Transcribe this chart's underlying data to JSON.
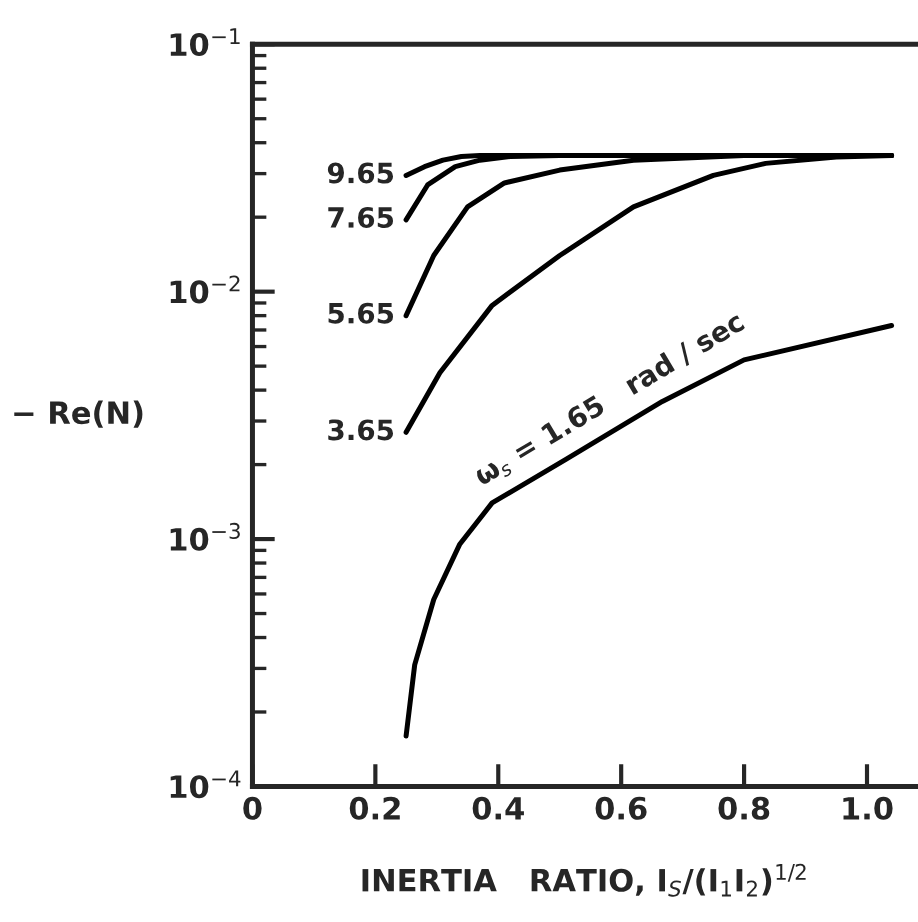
{
  "chart_data": {
    "type": "line",
    "xlabel": "INERTIA   RATIO, I$_{S}$/(I$_{1}$I$_{2}$)$^{1/2}$",
    "ylabel": "− Re(N)",
    "log": "y",
    "xlim": [
      0,
      1.08
    ],
    "ylim": [
      0.0001,
      0.1
    ],
    "xticks": [
      0,
      0.2,
      0.4,
      0.6,
      0.8,
      {
        "value": 1.0,
        "label": "1.0"
      }
    ],
    "yticks": [
      {
        "value": 0.0001,
        "label": "10$^{−4}$"
      },
      {
        "value": 0.001,
        "label": "10$^{−3}$"
      },
      {
        "value": 0.01,
        "label": "10$^{−2}$"
      },
      {
        "value": 0.1,
        "label": "10$^{−1}$"
      }
    ],
    "grid": false,
    "legend": false,
    "marker": "none",
    "line_style": "solid",
    "series": [
      {
        "name": "9.65",
        "color": "#000000",
        "x": [
          0.25,
          0.28,
          0.31,
          0.34,
          0.37,
          0.45,
          0.6,
          0.8,
          1.04
        ],
        "values": [
          0.0295,
          0.032,
          0.034,
          0.0352,
          0.0355,
          0.0355,
          0.0355,
          0.0355,
          0.0355
        ]
      },
      {
        "name": "7.65",
        "color": "#000000",
        "x": [
          0.25,
          0.285,
          0.33,
          0.37,
          0.42,
          0.5,
          0.7,
          1.04
        ],
        "values": [
          0.0195,
          0.027,
          0.032,
          0.034,
          0.0352,
          0.0355,
          0.0355,
          0.0355
        ]
      },
      {
        "name": "5.65",
        "color": "#000000",
        "x": [
          0.25,
          0.295,
          0.35,
          0.41,
          0.5,
          0.62,
          0.8,
          1.04
        ],
        "values": [
          0.008,
          0.014,
          0.022,
          0.0275,
          0.031,
          0.034,
          0.0355,
          0.0355
        ]
      },
      {
        "name": "3.65",
        "color": "#000000",
        "x": [
          0.25,
          0.305,
          0.39,
          0.5,
          0.62,
          0.75,
          0.835,
          0.95,
          1.04
        ],
        "values": [
          0.0027,
          0.0047,
          0.0088,
          0.014,
          0.022,
          0.0295,
          0.033,
          0.035,
          0.0355
        ]
      },
      {
        "color": "#000000",
        "x": [
          0.25,
          0.264,
          0.295,
          0.337,
          0.39,
          0.51,
          0.667,
          0.8,
          1.04
        ],
        "values": [
          0.00016,
          0.00031,
          0.00057,
          0.00095,
          0.0014,
          0.0021,
          0.0036,
          0.0053,
          0.0073
        ]
      }
    ],
    "annotations": [
      "ω$_{s}$ = 1.65   rad / sec"
    ]
  }
}
